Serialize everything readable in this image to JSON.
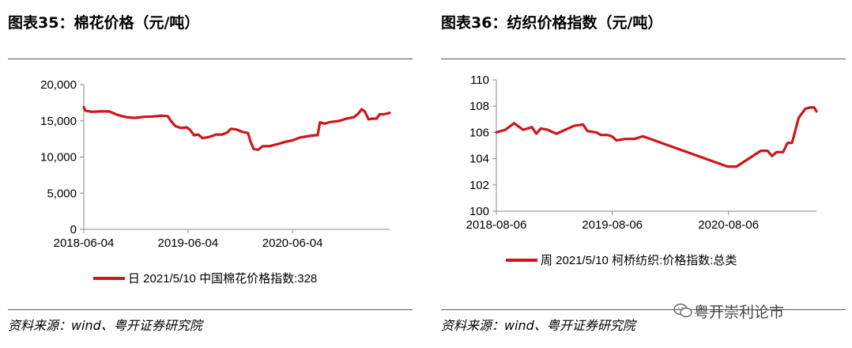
{
  "left": {
    "title": "图表35：棉花价格（元/吨）",
    "source": "资料来源：wind、粤开证券研究院"
  },
  "right": {
    "title": "图表36：纺织价格指数（元/吨）",
    "source": "资料来源：wind、粤开证券研究院"
  },
  "watermark": "粤开崇利论市",
  "colors": {
    "series": "#d0141c",
    "axis": "#888888"
  },
  "chart_data": [
    {
      "type": "line",
      "title": "图表35：棉花价格（元/吨）",
      "xlabel": "",
      "ylabel": "",
      "ylim": [
        0,
        20000
      ],
      "y_ticks": [
        "0",
        "5,000",
        "10,000",
        "15,000",
        "20,000"
      ],
      "y_tick_values": [
        0,
        5000,
        10000,
        15000,
        20000
      ],
      "x_range": [
        "2018-06-04",
        "2021-05-10"
      ],
      "x_ticks": [
        "2018-06-04",
        "2019-06-04",
        "2020-06-04"
      ],
      "grid": false,
      "legend": "bottom",
      "series": [
        {
          "name": "日 2021/5/10 中国棉花价格指数:328",
          "points": [
            [
              "2018-06-04",
              16900
            ],
            [
              "2018-06-10",
              16400
            ],
            [
              "2018-07-01",
              16250
            ],
            [
              "2018-08-01",
              16300
            ],
            [
              "2018-09-01",
              16300
            ],
            [
              "2018-10-01",
              15800
            ],
            [
              "2018-11-01",
              15500
            ],
            [
              "2018-12-01",
              15400
            ],
            [
              "2019-01-01",
              15550
            ],
            [
              "2019-02-01",
              15600
            ],
            [
              "2019-03-01",
              15700
            ],
            [
              "2019-03-25",
              15650
            ],
            [
              "2019-04-05",
              15000
            ],
            [
              "2019-04-20",
              14300
            ],
            [
              "2019-05-10",
              14000
            ],
            [
              "2019-05-30",
              14100
            ],
            [
              "2019-06-10",
              13800
            ],
            [
              "2019-06-25",
              13000
            ],
            [
              "2019-07-10",
              13100
            ],
            [
              "2019-07-25",
              12600
            ],
            [
              "2019-08-20",
              12800
            ],
            [
              "2019-09-10",
              13100
            ],
            [
              "2019-10-01",
              13100
            ],
            [
              "2019-10-20",
              13400
            ],
            [
              "2019-11-01",
              13900
            ],
            [
              "2019-11-20",
              13800
            ],
            [
              "2019-12-10",
              13500
            ],
            [
              "2019-12-31",
              13300
            ],
            [
              "2020-01-10",
              12000
            ],
            [
              "2020-01-20",
              11100
            ],
            [
              "2020-02-05",
              11000
            ],
            [
              "2020-02-20",
              11500
            ],
            [
              "2020-03-15",
              11500
            ],
            [
              "2020-04-15",
              11800
            ],
            [
              "2020-05-10",
              12100
            ],
            [
              "2020-06-04",
              12300
            ],
            [
              "2020-07-01",
              12700
            ],
            [
              "2020-08-01",
              12900
            ],
            [
              "2020-08-20",
              13000
            ],
            [
              "2020-08-31",
              13000
            ],
            [
              "2020-09-08",
              14800
            ],
            [
              "2020-09-25",
              14600
            ],
            [
              "2020-10-10",
              14800
            ],
            [
              "2020-11-15",
              15000
            ],
            [
              "2020-12-10",
              15300
            ],
            [
              "2021-01-05",
              15500
            ],
            [
              "2021-01-20",
              16000
            ],
            [
              "2021-02-01",
              16600
            ],
            [
              "2021-02-12",
              16300
            ],
            [
              "2021-02-25",
              15200
            ],
            [
              "2021-03-10",
              15300
            ],
            [
              "2021-03-25",
              15300
            ],
            [
              "2021-04-05",
              15900
            ],
            [
              "2021-04-20",
              15900
            ],
            [
              "2021-05-10",
              16100
            ]
          ]
        }
      ]
    },
    {
      "type": "line",
      "title": "图表36：纺织价格指数（元/吨）",
      "xlabel": "",
      "ylabel": "",
      "ylim": [
        100,
        110
      ],
      "y_ticks": [
        "100",
        "102",
        "104",
        "106",
        "108",
        "110"
      ],
      "y_tick_values": [
        100,
        102,
        104,
        106,
        108,
        110
      ],
      "x_range": [
        "2018-08-06",
        "2021-05-10"
      ],
      "x_ticks": [
        "2018-08-06",
        "2019-08-06",
        "2020-08-06"
      ],
      "grid": false,
      "legend": "bottom",
      "series": [
        {
          "name": "周 2021/5/10 柯桥纺织:价格指数:总类",
          "points": [
            [
              "2018-08-06",
              106.0
            ],
            [
              "2018-09-03",
              106.2
            ],
            [
              "2018-10-01",
              106.7
            ],
            [
              "2018-10-29",
              106.2
            ],
            [
              "2018-11-26",
              106.4
            ],
            [
              "2018-12-10",
              105.9
            ],
            [
              "2018-12-24",
              106.3
            ],
            [
              "2019-01-14",
              106.2
            ],
            [
              "2019-02-11",
              105.9
            ],
            [
              "2019-03-11",
              106.2
            ],
            [
              "2019-04-08",
              106.5
            ],
            [
              "2019-05-06",
              106.6
            ],
            [
              "2019-05-20",
              106.1
            ],
            [
              "2019-06-17",
              106.0
            ],
            [
              "2019-07-01",
              105.8
            ],
            [
              "2019-07-22",
              105.8
            ],
            [
              "2019-08-05",
              105.7
            ],
            [
              "2019-08-19",
              105.4
            ],
            [
              "2019-09-16",
              105.5
            ],
            [
              "2019-10-14",
              105.5
            ],
            [
              "2019-11-11",
              105.7
            ],
            [
              "2020-08-03",
              103.4
            ],
            [
              "2020-08-31",
              103.4
            ],
            [
              "2020-11-16",
              104.6
            ],
            [
              "2020-12-07",
              104.6
            ],
            [
              "2020-12-21",
              104.2
            ],
            [
              "2021-01-04",
              104.5
            ],
            [
              "2021-01-25",
              104.5
            ],
            [
              "2021-02-08",
              105.2
            ],
            [
              "2021-02-22",
              105.2
            ],
            [
              "2021-03-15",
              107.1
            ],
            [
              "2021-04-05",
              107.8
            ],
            [
              "2021-04-19",
              107.9
            ],
            [
              "2021-05-03",
              107.9
            ],
            [
              "2021-05-10",
              107.6
            ]
          ]
        }
      ]
    }
  ]
}
